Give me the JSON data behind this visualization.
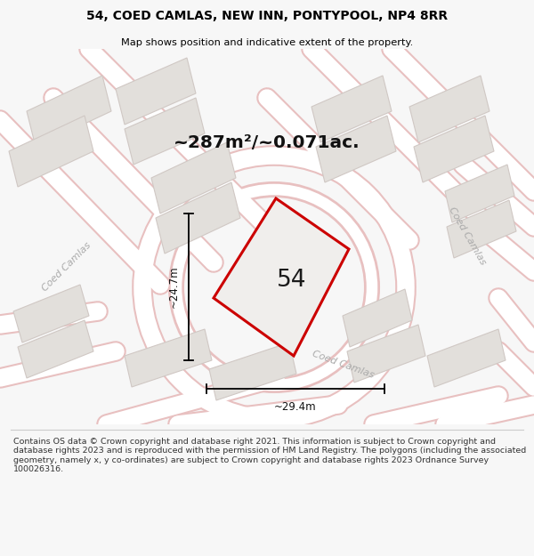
{
  "title_line1": "54, COED CAMLAS, NEW INN, PONTYPOOL, NP4 8RR",
  "title_line2": "Map shows position and indicative extent of the property.",
  "area_text": "~287m²/~0.071ac.",
  "plot_number": "54",
  "dim_width": "~29.4m",
  "dim_height": "~24.7m",
  "bg_color": "#f7f7f7",
  "map_bg": "#f2f0ee",
  "road_color": "#ffffff",
  "road_stroke": "#e8c0c0",
  "plot_stroke": "#cc0000",
  "building_fill": "#e2dfdb",
  "building_stroke": "#d0c8c4",
  "footer_text": "Contains OS data © Crown copyright and database right 2021. This information is subject to Crown copyright and database rights 2023 and is reproduced with the permission of HM Land Registry. The polygons (including the associated geometry, namely x, y co-ordinates) are subject to Crown copyright and database rights 2023 Ordnance Survey 100026316.",
  "street_label": "Coed Camlas"
}
